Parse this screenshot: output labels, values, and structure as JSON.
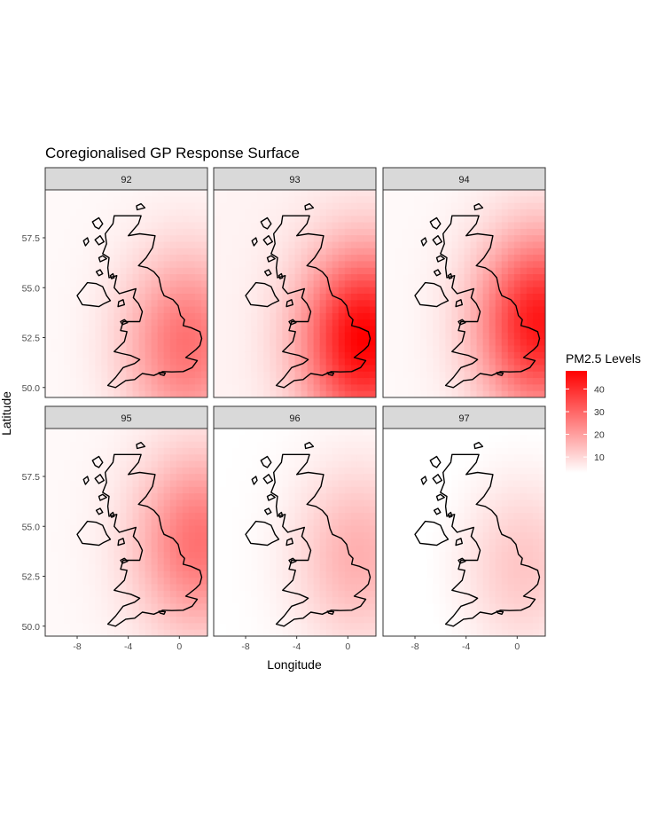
{
  "chart_data": {
    "type": "heatmap",
    "title": "Coregionalised GP Response Surface",
    "xlabel": "Longitude",
    "ylabel": "Latitude",
    "xlim": [
      -10.5,
      2.2
    ],
    "ylim": [
      49.5,
      59.9
    ],
    "x_ticks": [
      -8,
      -4,
      0
    ],
    "x_tick_labels": [
      "-8",
      "-4",
      "0"
    ],
    "y_ticks": [
      50.0,
      52.5,
      55.0,
      57.5
    ],
    "y_tick_labels": [
      "50.0",
      "52.5",
      "55.0",
      "57.5"
    ],
    "grid": false,
    "facet_rows": 2,
    "facet_cols": 3,
    "facets": [
      {
        "label": "92",
        "peak": {
          "lon": 0.6,
          "lat": 52.2
        },
        "max_value": 28,
        "base_value": 4
      },
      {
        "label": "93",
        "peak": {
          "lon": 1.3,
          "lat": 52.4
        },
        "max_value": 48,
        "base_value": 5
      },
      {
        "label": "94",
        "peak": {
          "lon": 1.8,
          "lat": 53.2
        },
        "max_value": 44,
        "base_value": 4
      },
      {
        "label": "95",
        "peak": {
          "lon": 1.5,
          "lat": 54.2
        },
        "max_value": 28,
        "base_value": 4
      },
      {
        "label": "96",
        "peak": {
          "lon": 0.8,
          "lat": 53.5
        },
        "max_value": 17,
        "base_value": 3
      },
      {
        "label": "97",
        "peak": {
          "lon": 0.5,
          "lat": 53.0
        },
        "max_value": 13,
        "base_value": 2
      }
    ],
    "legend": {
      "title": "PM2.5 Levels",
      "position": "right",
      "range": [
        3,
        48
      ],
      "ticks": [
        10,
        20,
        30,
        40
      ],
      "tick_labels": [
        "10",
        "20",
        "30",
        "40"
      ],
      "low_color": "#ffffff",
      "high_color": "#ff0000"
    }
  }
}
